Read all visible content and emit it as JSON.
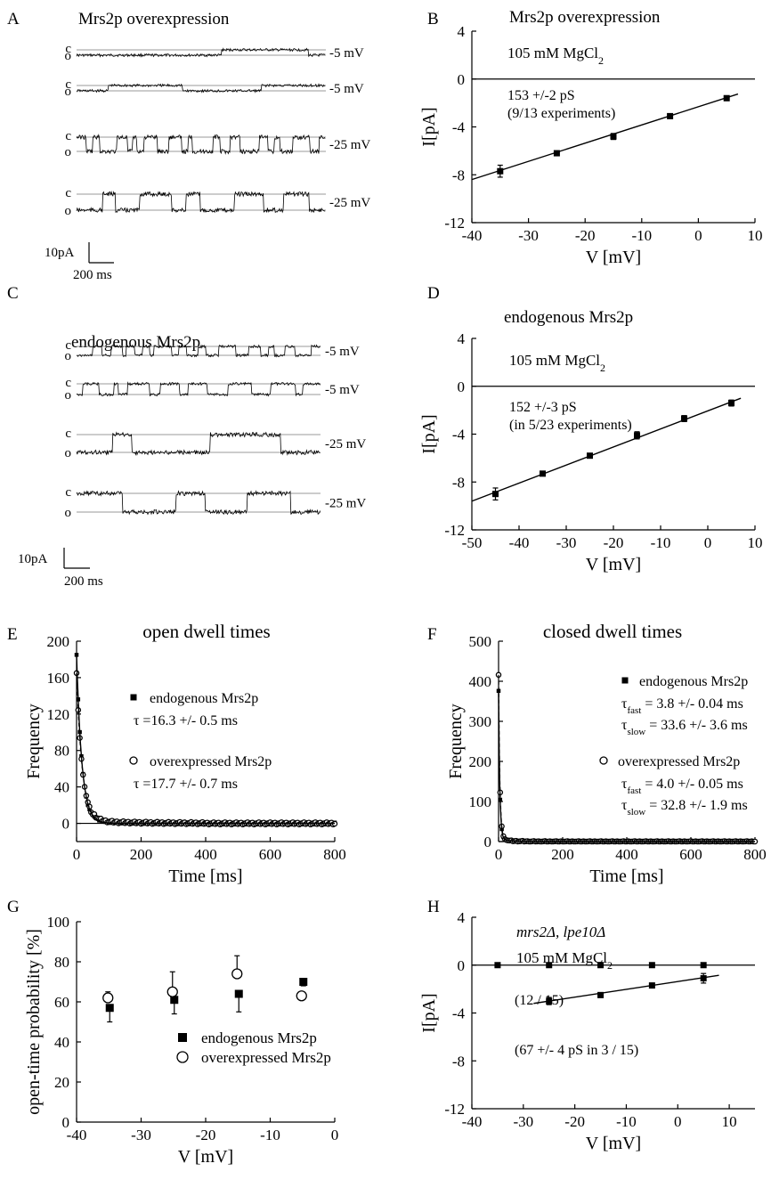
{
  "panels": {
    "A": {
      "letter": "A",
      "title": "Mrs2p overexpression",
      "c": "c",
      "o": "o",
      "labels": [
        "-5 mV",
        "-5 mV",
        "-25 mV",
        "-25 mV"
      ],
      "scale_y": "10pA",
      "scale_x": "200 ms"
    },
    "C": {
      "letter": "C",
      "title": "endogenous Mrs2p",
      "c": "c",
      "o": "o",
      "labels": [
        "-5 mV",
        "-5 mV",
        "-25 mV",
        "-25 mV"
      ],
      "scale_y": "10pA",
      "scale_x": "200 ms"
    },
    "B": {
      "letter": "B"
    },
    "D": {
      "letter": "D"
    },
    "E": {
      "letter": "E"
    },
    "F": {
      "letter": "F"
    },
    "G": {
      "letter": "G"
    },
    "H": {
      "letter": "H"
    }
  },
  "chart_data": [
    {
      "id": "B",
      "type": "scatter",
      "title": "Mrs2p overexpression",
      "conc_prefix": "105 mM MgCl",
      "conc_sub": "2",
      "annotation": [
        "153 +/-2 pS",
        "(9/13 experiments)"
      ],
      "xlabel": "V [mV]",
      "ylabel": "I[pA]",
      "xlim": [
        -40,
        10
      ],
      "ylim": [
        -12,
        4
      ],
      "xticks": [
        -40,
        -30,
        -20,
        -10,
        0,
        10
      ],
      "yticks": [
        -12,
        -8,
        -4,
        0,
        4
      ],
      "series": [
        {
          "x": [
            -35,
            -25,
            -15,
            -5,
            5
          ],
          "y": [
            -7.7,
            -6.2,
            -4.8,
            -3.1,
            -1.6
          ],
          "err": [
            0.5,
            0.1,
            0.25,
            0.1,
            0.2
          ]
        }
      ],
      "fit": [
        [
          -40,
          -8.4
        ],
        [
          7,
          -1.25
        ]
      ]
    },
    {
      "id": "D",
      "type": "scatter",
      "title": "endogenous Mrs2p",
      "conc_prefix": "105 mM MgCl",
      "conc_sub": "2",
      "annotation": [
        "152 +/-3 pS",
        "(in 5/23 experiments)"
      ],
      "xlabel": "V [mV]",
      "ylabel": "I[pA]",
      "xlim": [
        -50,
        10
      ],
      "ylim": [
        -12,
        4
      ],
      "xticks": [
        -50,
        -40,
        -30,
        -20,
        -10,
        0,
        10
      ],
      "yticks": [
        -12,
        -8,
        -4,
        0,
        4
      ],
      "series": [
        {
          "x": [
            -45,
            -35,
            -25,
            -15,
            -5,
            5
          ],
          "y": [
            -9.0,
            -7.3,
            -5.8,
            -4.1,
            -2.7,
            -1.4
          ],
          "err": [
            0.5,
            0.1,
            0.15,
            0.3,
            0.25,
            0.25
          ]
        }
      ],
      "fit": [
        [
          -50,
          -9.6
        ],
        [
          7,
          -1.0
        ]
      ]
    },
    {
      "id": "E",
      "type": "scatter",
      "title": "open dwell times",
      "xlabel": "Time [ms]",
      "ylabel": "Frequency",
      "xlim": [
        0,
        800
      ],
      "ylim": [
        -20,
        200
      ],
      "xticks": [
        0,
        200,
        400,
        600,
        800
      ],
      "yticks": [
        0,
        40,
        80,
        120,
        160,
        200
      ],
      "series": [
        {
          "name": "endogenous Mrs2p",
          "marker": "square",
          "tau": 16.3
        },
        {
          "name": "overexpressed Mrs2p",
          "marker": "circle",
          "tau": 17.7
        }
      ],
      "legend": [
        [
          "endogenous Mrs2p",
          "τ =16.3 +/- 0.5 ms"
        ],
        [
          "overexpressed Mrs2p",
          "τ =17.7 +/- 0.7 ms"
        ]
      ]
    },
    {
      "id": "F",
      "type": "scatter",
      "title": "closed dwell times",
      "xlabel": "Time [ms]",
      "ylabel": "Frequency",
      "xlim": [
        0,
        800
      ],
      "ylim": [
        0,
        500
      ],
      "xticks": [
        0,
        200,
        400,
        600,
        800
      ],
      "yticks": [
        0,
        100,
        200,
        300,
        400,
        500
      ],
      "series": [
        {
          "name": "endogenous Mrs2p",
          "marker": "square",
          "tau_fast": 3.8,
          "tau_slow": 33.6
        },
        {
          "name": "overexpressed Mrs2p",
          "marker": "circle",
          "tau_fast": 4.0,
          "tau_slow": 32.8
        }
      ],
      "legend": [
        [
          "endogenous Mrs2p",
          "fast",
          " = 3.8 +/- 0.04 ms",
          "slow",
          " = 33.6 +/- 3.6 ms"
        ],
        [
          "overexpressed Mrs2p",
          "fast",
          " = 4.0 +/- 0.05 ms",
          "slow",
          " = 32.8 +/- 1.9 ms"
        ]
      ],
      "tau_symbol": "τ"
    },
    {
      "id": "G",
      "type": "scatter",
      "xlabel": "V [mV]",
      "ylabel": "open-time probability [%]",
      "xlim": [
        -40,
        0
      ],
      "ylim": [
        0,
        100
      ],
      "xticks": [
        -40,
        -30,
        -20,
        -10,
        0
      ],
      "yticks": [
        0,
        20,
        40,
        60,
        80,
        100
      ],
      "series": [
        {
          "name": "endogenous Mrs2p",
          "marker": "square",
          "x": [
            -35,
            -25,
            -15,
            -5
          ],
          "y": [
            57,
            61,
            64,
            70
          ],
          "err": [
            7,
            7,
            9,
            2
          ]
        },
        {
          "name": "overexpressed Mrs2p",
          "marker": "circle",
          "x": [
            -35,
            -25,
            -15,
            -5
          ],
          "y": [
            62,
            65,
            74,
            63
          ],
          "err": [
            3,
            10,
            9,
            0
          ]
        }
      ]
    },
    {
      "id": "H",
      "type": "scatter",
      "title_italic": "mrs2Δ, lpe10Δ",
      "conc_prefix": "105 mM MgCl",
      "conc_sub": "2",
      "annotation": [
        "(12 / 15)",
        "(67 +/- 4 pS in 3 / 15)"
      ],
      "xlabel": "V [mV]",
      "ylabel": "I[pA]",
      "xlim": [
        -40,
        15
      ],
      "ylim": [
        -12,
        4
      ],
      "xticks": [
        -40,
        -30,
        -20,
        -10,
        0,
        10
      ],
      "yticks": [
        -12,
        -8,
        -4,
        0,
        4
      ],
      "series": [
        {
          "x": [
            -35,
            -25,
            -15,
            -5,
            5
          ],
          "y": [
            0,
            0,
            0,
            0,
            0
          ],
          "err": [
            0,
            0,
            0,
            0,
            0
          ]
        },
        {
          "x": [
            -25,
            -15,
            -5,
            5
          ],
          "y": [
            -3.0,
            -2.5,
            -1.7,
            -1.1
          ],
          "err": [
            0.3,
            0.2,
            0.1,
            0.4
          ]
        }
      ],
      "fit": [
        [
          -28,
          -3.2
        ],
        [
          8,
          -0.85
        ]
      ]
    }
  ]
}
